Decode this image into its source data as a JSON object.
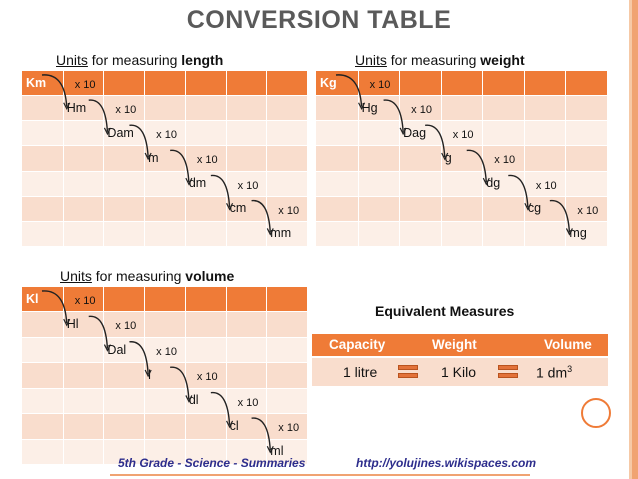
{
  "title": "CONVERSION TABLE",
  "length": {
    "heading_pre": "Units",
    "heading_mid": " for measuring ",
    "heading_bold": "length",
    "units": [
      "Km",
      "Hm",
      "Dam",
      "m",
      "dm",
      "cm",
      "mm"
    ],
    "multiplier": "x 10"
  },
  "weight": {
    "heading_pre": "Units",
    "heading_mid": " for measuring ",
    "heading_bold": "weight",
    "units": [
      "Kg",
      "Hg",
      "Dag",
      "g",
      "dg",
      "cg",
      "mg"
    ],
    "multiplier": "x 10"
  },
  "volume": {
    "heading_pre": "Units",
    "heading_mid": " for measuring ",
    "heading_bold": "volume",
    "units": [
      "Kl",
      "Hl",
      "Dal",
      "l",
      "dl",
      "cl",
      "ml"
    ],
    "multiplier": "x 10"
  },
  "equivalent": {
    "title": "Equivalent Measures",
    "headers": [
      "Capacity",
      "Weight",
      "Volume"
    ],
    "values": [
      "1 litre",
      "1 Kilo",
      "1 dm"
    ],
    "volume_superscript": "3"
  },
  "footer": {
    "left": "5th Grade - Science - Summaries",
    "right": "http://yolujines.wikispaces.com"
  },
  "colors": {
    "accent": "#ef7b37",
    "row_light": "#f9ddcd",
    "row_pale": "#fcefe7",
    "title": "#5a5a5a"
  }
}
